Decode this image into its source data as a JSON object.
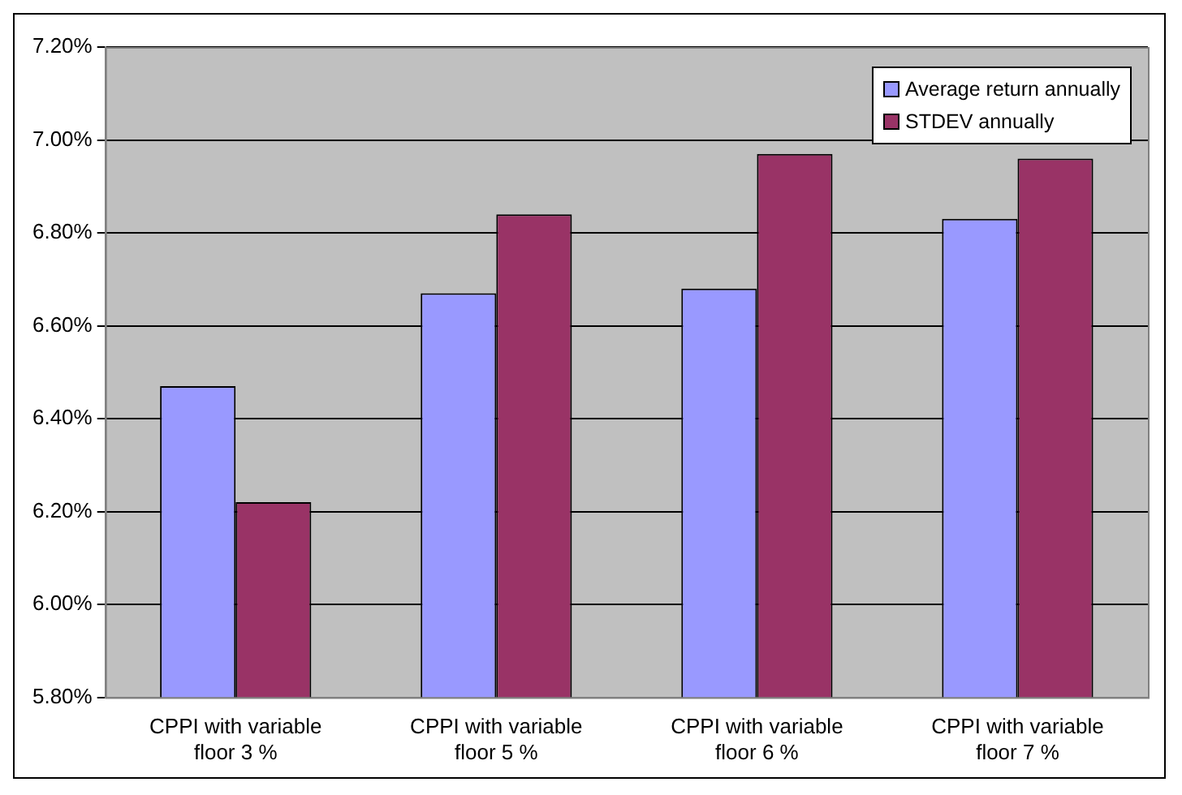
{
  "chart_data": {
    "type": "bar",
    "categories": [
      "CPPI with variable floor 3 %",
      "CPPI with variable floor 5 %",
      "CPPI with variable floor 6 %",
      "CPPI with variable floor 7 %"
    ],
    "series": [
      {
        "name": "Average return annually",
        "color": "#9999ff",
        "values": [
          6.47,
          6.67,
          6.68,
          6.83
        ]
      },
      {
        "name": "STDEV annually",
        "color": "#993366",
        "values": [
          6.22,
          6.84,
          6.97,
          6.96
        ]
      }
    ],
    "ylim": [
      5.8,
      7.2
    ],
    "yticks": [
      {
        "value": 5.8,
        "label": "5.80%"
      },
      {
        "value": 6.0,
        "label": "6.00%"
      },
      {
        "value": 6.2,
        "label": "6.20%"
      },
      {
        "value": 6.4,
        "label": "6.40%"
      },
      {
        "value": 6.6,
        "label": "6.60%"
      },
      {
        "value": 6.8,
        "label": "6.80%"
      },
      {
        "value": 7.0,
        "label": "7.00%"
      },
      {
        "value": 7.2,
        "label": "7.20%"
      }
    ],
    "grid": "y",
    "legend": "top right"
  }
}
